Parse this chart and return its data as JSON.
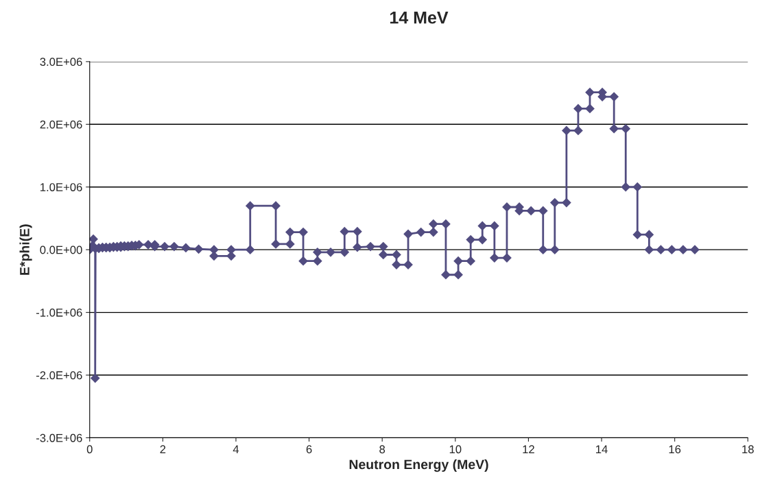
{
  "chart_data": {
    "type": "line",
    "title": "14 MeV",
    "xlabel": "Neutron Energy (MeV)",
    "ylabel": "E*phi(E)",
    "series": [
      {
        "color": "#514c80",
        "x": [
          0,
          0.05,
          0.1,
          0.15,
          0.15,
          0.16,
          0.25,
          0.25,
          0.35,
          0.35,
          0.45,
          0.45,
          0.55,
          0.55,
          0.65,
          0.65,
          0.75,
          0.75,
          0.85,
          0.85,
          0.95,
          0.95,
          1.05,
          1.05,
          1.15,
          1.15,
          1.25,
          1.25,
          1.35,
          1.6,
          1.78,
          1.78,
          2.05,
          2.31,
          2.63,
          2.98,
          3.4,
          3.4,
          3.87,
          3.87,
          4.39,
          4.39,
          5.09,
          5.09,
          5.48,
          5.48,
          5.84,
          5.84,
          6.23,
          6.23,
          6.59,
          6.97,
          6.97,
          7.32,
          7.32,
          7.68,
          8.03,
          8.03,
          8.39,
          8.39,
          8.71,
          8.71,
          9.06,
          9.4,
          9.4,
          9.74,
          9.74,
          10.08,
          10.08,
          10.42,
          10.42,
          10.74,
          10.74,
          11.07,
          11.07,
          11.41,
          11.41,
          11.75,
          11.75,
          12.07,
          12.4,
          12.4,
          12.72,
          12.72,
          13.04,
          13.04,
          13.36,
          13.36,
          13.68,
          13.68,
          14.02,
          14.02,
          14.34,
          14.34,
          14.66,
          14.66,
          14.98,
          14.98,
          15.3,
          15.3,
          15.62,
          15.92,
          16.23,
          16.55
        ],
        "values": [
          0,
          50000,
          170000,
          20000,
          -2050000,
          20000,
          20000,
          30000,
          30000,
          40000,
          40000,
          30000,
          30000,
          40000,
          40000,
          50000,
          50000,
          40000,
          40000,
          60000,
          60000,
          50000,
          50000,
          60000,
          60000,
          70000,
          70000,
          60000,
          80000,
          80000,
          80000,
          50000,
          50000,
          50000,
          30000,
          10000,
          0,
          -100000,
          -100000,
          0,
          0,
          700000,
          700000,
          90000,
          90000,
          280000,
          280000,
          -180000,
          -180000,
          -40000,
          -40000,
          -40000,
          290000,
          290000,
          40000,
          50000,
          50000,
          -80000,
          -80000,
          -240000,
          -240000,
          250000,
          280000,
          280000,
          410000,
          410000,
          -400000,
          -400000,
          -180000,
          -180000,
          160000,
          160000,
          380000,
          380000,
          -130000,
          -130000,
          680000,
          680000,
          620000,
          620000,
          620000,
          0,
          0,
          750000,
          750000,
          1900000,
          1900000,
          2250000,
          2250000,
          2510000,
          2510000,
          2440000,
          2440000,
          1930000,
          1930000,
          1000000,
          1000000,
          240000,
          240000,
          0,
          0,
          0,
          0,
          0
        ]
      }
    ],
    "xlim": [
      0,
      18
    ],
    "xticks": [
      0,
      2,
      4,
      6,
      8,
      10,
      12,
      14,
      16,
      18
    ],
    "ylim": [
      -3000000,
      3000000
    ],
    "yticks": [
      {
        "value": -3000000,
        "label": "-3.0E+06"
      },
      {
        "value": -2000000,
        "label": "-2.0E+06"
      },
      {
        "value": -1000000,
        "label": "-1.0E+06"
      },
      {
        "value": 0,
        "label": "0.0E+00"
      },
      {
        "value": 1000000,
        "label": "1.0E+06"
      },
      {
        "value": 2000000,
        "label": "2.0E+06"
      },
      {
        "value": 3000000,
        "label": "3.0E+06"
      }
    ],
    "grid": "y",
    "marker": "diamond",
    "line_style": "solid"
  }
}
